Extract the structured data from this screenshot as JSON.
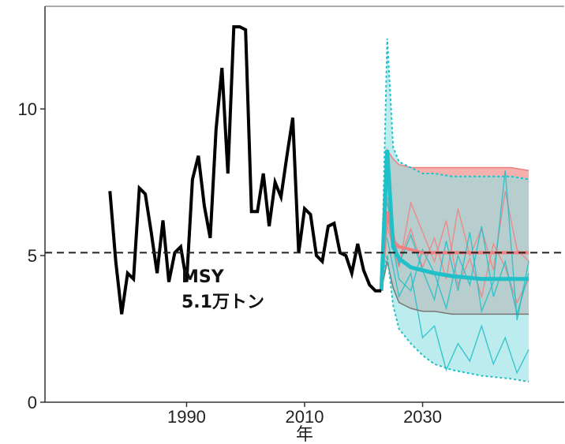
{
  "chart_data": {
    "type": "line",
    "title": "",
    "xlabel": "年",
    "ylabel": "",
    "xlim": [
      1966,
      2054
    ],
    "ylim": [
      0,
      13.5
    ],
    "x_ticks": [
      1990,
      2010,
      2030
    ],
    "y_ticks": [
      0,
      5,
      10
    ],
    "x_tick_labels": [
      "1990",
      "2010",
      "2030"
    ],
    "y_tick_labels": [
      "0",
      "5",
      "10"
    ],
    "grid": false,
    "colors": {
      "observed": "#000000",
      "scenario_red": "#f08080",
      "scenario_cyan": "#20c0c8",
      "band_red_fill": "#f4a8a4",
      "band_cyan_fill": "#8fdfe2",
      "band_overlap_fill": "#8fb5b1",
      "msy_line": "#222222"
    },
    "msy": {
      "value": 5.1,
      "label_line1": "MSY",
      "label_line2": "5.1万トン"
    },
    "observed": {
      "x": [
        1977,
        1978,
        1979,
        1980,
        1981,
        1982,
        1983,
        1984,
        1985,
        1986,
        1987,
        1988,
        1989,
        1990,
        1991,
        1992,
        1993,
        1994,
        1995,
        1996,
        1997,
        1998,
        1999,
        2000,
        2001,
        2002,
        2003,
        2004,
        2005,
        2006,
        2007,
        2008,
        2009,
        2010,
        2011,
        2012,
        2013,
        2014,
        2015,
        2016,
        2017,
        2018,
        2019,
        2020,
        2021,
        2022,
        2023
      ],
      "y": [
        7.2,
        4.8,
        3.0,
        4.4,
        4.2,
        7.3,
        7.1,
        5.8,
        4.4,
        6.2,
        4.1,
        5.1,
        5.3,
        4.1,
        7.6,
        8.4,
        6.7,
        5.6,
        9.3,
        11.4,
        7.8,
        12.8,
        12.8,
        12.7,
        6.5,
        6.5,
        7.8,
        6.0,
        7.5,
        7.0,
        8.4,
        9.7,
        5.1,
        6.6,
        6.4,
        5.0,
        4.8,
        6.0,
        6.1,
        5.1,
        5.0,
        4.4,
        5.4,
        4.5,
        4.0,
        3.8,
        3.8
      ]
    },
    "projection": {
      "x": [
        2023,
        2024,
        2025,
        2026,
        2028,
        2030,
        2032,
        2035,
        2040,
        2045,
        2048
      ],
      "red_median": [
        3.8,
        6.5,
        5.5,
        5.3,
        5.2,
        5.1,
        5.1,
        5.1,
        5.1,
        5.1,
        5.1
      ],
      "red_upper": [
        3.8,
        8.6,
        8.3,
        8.1,
        8.0,
        8.0,
        8.0,
        8.0,
        8.0,
        8.0,
        7.9
      ],
      "red_lower": [
        3.8,
        4.8,
        3.9,
        3.4,
        3.2,
        3.1,
        3.1,
        3.0,
        3.0,
        3.0,
        3.0
      ],
      "cyan_median": [
        3.8,
        8.6,
        5.3,
        4.9,
        4.6,
        4.5,
        4.4,
        4.3,
        4.2,
        4.2,
        4.2
      ],
      "cyan_upper": [
        3.8,
        12.4,
        8.7,
        8.2,
        8.0,
        7.8,
        7.8,
        7.7,
        7.7,
        7.7,
        7.6
      ],
      "cyan_lower": [
        3.8,
        5.0,
        3.3,
        2.5,
        2.0,
        1.6,
        1.3,
        1.1,
        0.9,
        0.8,
        0.7
      ]
    },
    "sample_paths": [
      {
        "color": "red",
        "x": [
          2024,
          2026,
          2028,
          2030,
          2032,
          2034,
          2036,
          2038,
          2040,
          2042,
          2044,
          2046,
          2048
        ],
        "y": [
          7.0,
          4.8,
          5.9,
          4.6,
          5.6,
          4.2,
          6.6,
          5.0,
          5.9,
          4.5,
          7.2,
          5.2,
          4.8
        ]
      },
      {
        "color": "red",
        "x": [
          2024,
          2026,
          2028,
          2030,
          2032,
          2034,
          2036,
          2038,
          2040,
          2042,
          2044,
          2046,
          2048
        ],
        "y": [
          6.0,
          4.6,
          6.8,
          5.8,
          4.8,
          6.2,
          4.0,
          4.9,
          3.6,
          5.4,
          4.6,
          3.4,
          4.2
        ]
      },
      {
        "color": "cyan",
        "x": [
          2024,
          2026,
          2028,
          2030,
          2032,
          2034,
          2036,
          2038,
          2040,
          2042,
          2044,
          2046,
          2048
        ],
        "y": [
          6.8,
          4.7,
          5.7,
          4.5,
          3.5,
          5.5,
          3.8,
          5.8,
          3.1,
          4.1,
          7.9,
          2.8,
          4.8
        ]
      },
      {
        "color": "cyan",
        "x": [
          2024,
          2026,
          2028,
          2030,
          2032,
          2034,
          2036,
          2038,
          2040,
          2042,
          2044,
          2046,
          2048
        ],
        "y": [
          5.6,
          3.6,
          4.4,
          2.2,
          2.6,
          1.1,
          2.0,
          1.4,
          2.6,
          1.3,
          2.2,
          1.0,
          1.8
        ]
      },
      {
        "color": "cyan",
        "x": [
          2024,
          2026,
          2028,
          2030,
          2032,
          2034,
          2036,
          2038,
          2040,
          2042,
          2044,
          2046,
          2048
        ],
        "y": [
          6.4,
          4.2,
          3.8,
          5.2,
          4.4,
          3.2,
          5.0,
          4.0,
          6.0,
          3.6,
          4.8,
          3.0,
          4.4
        ]
      }
    ]
  }
}
